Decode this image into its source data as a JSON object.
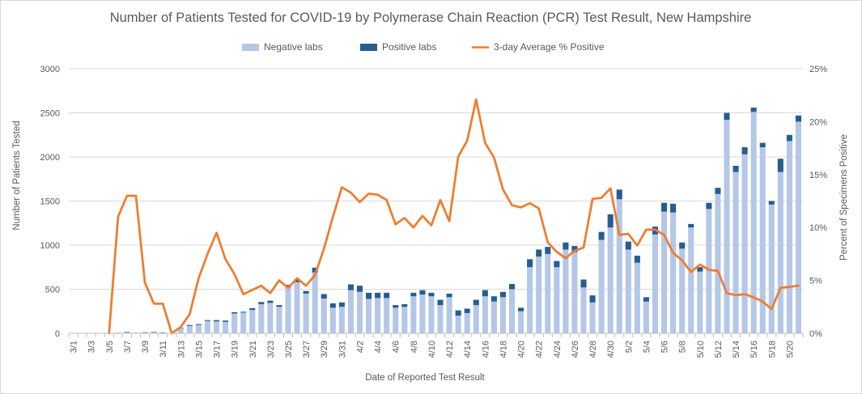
{
  "chart_data": {
    "type": "bar",
    "title": "Number of Patients Tested for COVID-19 by Polymerase Chain Reaction (PCR) Test Result, New Hampshire",
    "xlabel": "Date of Reported Test Result",
    "ylabel": "Number of Patients Tested",
    "y2label": "Percent of Specimens Positive",
    "ylim": [
      0,
      3000
    ],
    "y2lim": [
      0,
      25
    ],
    "yticks": [
      "0",
      "500",
      "1000",
      "1500",
      "2000",
      "2500",
      "3000"
    ],
    "y2ticks": [
      "0%",
      "5%",
      "10%",
      "15%",
      "20%",
      "25%"
    ],
    "legend_position": "top",
    "stacked": true,
    "grid": true,
    "categories": [
      "3/1",
      "3/2",
      "3/3",
      "3/4",
      "3/5",
      "3/6",
      "3/7",
      "3/8",
      "3/9",
      "3/10",
      "3/11",
      "3/12",
      "3/13",
      "3/14",
      "3/15",
      "3/16",
      "3/17",
      "3/18",
      "3/19",
      "3/20",
      "3/21",
      "3/22",
      "3/23",
      "3/24",
      "3/25",
      "3/26",
      "3/27",
      "3/28",
      "3/29",
      "3/30",
      "3/31",
      "4/1",
      "4/2",
      "4/3",
      "4/4",
      "4/5",
      "4/6",
      "4/7",
      "4/8",
      "4/9",
      "4/10",
      "4/11",
      "4/12",
      "4/13",
      "4/14",
      "4/15",
      "4/16",
      "4/17",
      "4/18",
      "4/19",
      "4/20",
      "4/21",
      "4/22",
      "4/23",
      "4/24",
      "4/25",
      "4/26",
      "4/27",
      "4/28",
      "4/29",
      "4/30",
      "5/1",
      "5/2",
      "5/3",
      "5/4",
      "5/5",
      "5/6",
      "5/7",
      "5/8",
      "5/9",
      "5/10",
      "5/11",
      "5/12",
      "5/13",
      "5/14",
      "5/15",
      "5/16",
      "5/17",
      "5/18",
      "5/19",
      "5/20",
      "5/21"
    ],
    "tick_labels": [
      "3/1",
      "3/3",
      "3/5",
      "3/7",
      "3/9",
      "3/11",
      "3/13",
      "3/15",
      "3/17",
      "3/19",
      "3/21",
      "3/23",
      "3/25",
      "3/27",
      "3/29",
      "3/31",
      "4/2",
      "4/4",
      "4/6",
      "4/8",
      "4/10",
      "4/12",
      "4/14",
      "4/16",
      "4/18",
      "4/20",
      "4/22",
      "4/24",
      "4/26",
      "4/28",
      "4/30",
      "5/2",
      "5/4",
      "5/6",
      "5/8",
      "5/10",
      "5/12",
      "5/14",
      "5/16",
      "5/18",
      "5/20"
    ],
    "series": [
      {
        "name": "Negative labs",
        "kind": "bar",
        "color": "#b4c7e7",
        "values": [
          0,
          0,
          0,
          0,
          3,
          5,
          15,
          5,
          10,
          15,
          8,
          5,
          60,
          85,
          95,
          140,
          135,
          130,
          225,
          235,
          265,
          330,
          345,
          300,
          520,
          580,
          450,
          690,
          395,
          290,
          300,
          490,
          470,
          390,
          400,
          400,
          290,
          300,
          420,
          440,
          420,
          320,
          410,
          200,
          230,
          320,
          420,
          360,
          410,
          500,
          250,
          750,
          870,
          900,
          750,
          950,
          920,
          520,
          350,
          1060,
          1200,
          1520,
          950,
          800,
          360,
          1120,
          1380,
          1370,
          960,
          1200,
          700,
          1410,
          1580,
          2420,
          1830,
          2030,
          2510,
          2110,
          1460,
          1830,
          2180,
          2400
        ]
      },
      {
        "name": "Positive labs",
        "kind": "bar",
        "color": "#255e91",
        "values": [
          0,
          0,
          0,
          0,
          0,
          1,
          4,
          1,
          2,
          2,
          1,
          0,
          5,
          10,
          10,
          10,
          15,
          15,
          15,
          10,
          20,
          25,
          25,
          20,
          30,
          35,
          30,
          55,
          50,
          50,
          50,
          65,
          70,
          70,
          60,
          60,
          30,
          30,
          40,
          50,
          40,
          60,
          40,
          60,
          50,
          60,
          70,
          60,
          60,
          60,
          40,
          90,
          80,
          80,
          70,
          80,
          70,
          90,
          80,
          90,
          150,
          110,
          90,
          80,
          50,
          90,
          100,
          100,
          70,
          40,
          50,
          70,
          70,
          80,
          70,
          80,
          50,
          50,
          40,
          150,
          70,
          70
        ]
      },
      {
        "name": "3-day Average % Positive",
        "kind": "line",
        "axis": "right",
        "color": "#ed7d31",
        "values": [
          null,
          null,
          null,
          null,
          0,
          11,
          13,
          13,
          4.8,
          2.8,
          2.8,
          0,
          0.6,
          1.8,
          5.2,
          7.5,
          9.5,
          7,
          5.6,
          3.7,
          4.1,
          4.5,
          3.8,
          5,
          4.3,
          5.2,
          4.5,
          5.5,
          8,
          11,
          13.8,
          13.3,
          12.4,
          13.2,
          13.1,
          12.6,
          10.3,
          10.9,
          10,
          11.1,
          10.2,
          12.6,
          10.6,
          16.7,
          18.2,
          22.1,
          18,
          16.6,
          13.6,
          12.1,
          11.9,
          12.3,
          11.8,
          8.6,
          7.7,
          7.1,
          7.8,
          8.1,
          12.7,
          12.8,
          13.7,
          9.3,
          9.4,
          8.3,
          9.8,
          9.8,
          9.3,
          7.6,
          6.9,
          5.8,
          6.5,
          6,
          5.9,
          3.8,
          3.6,
          3.7,
          3.4,
          3,
          2.3,
          4.3,
          4.4,
          4.5
        ]
      }
    ]
  }
}
